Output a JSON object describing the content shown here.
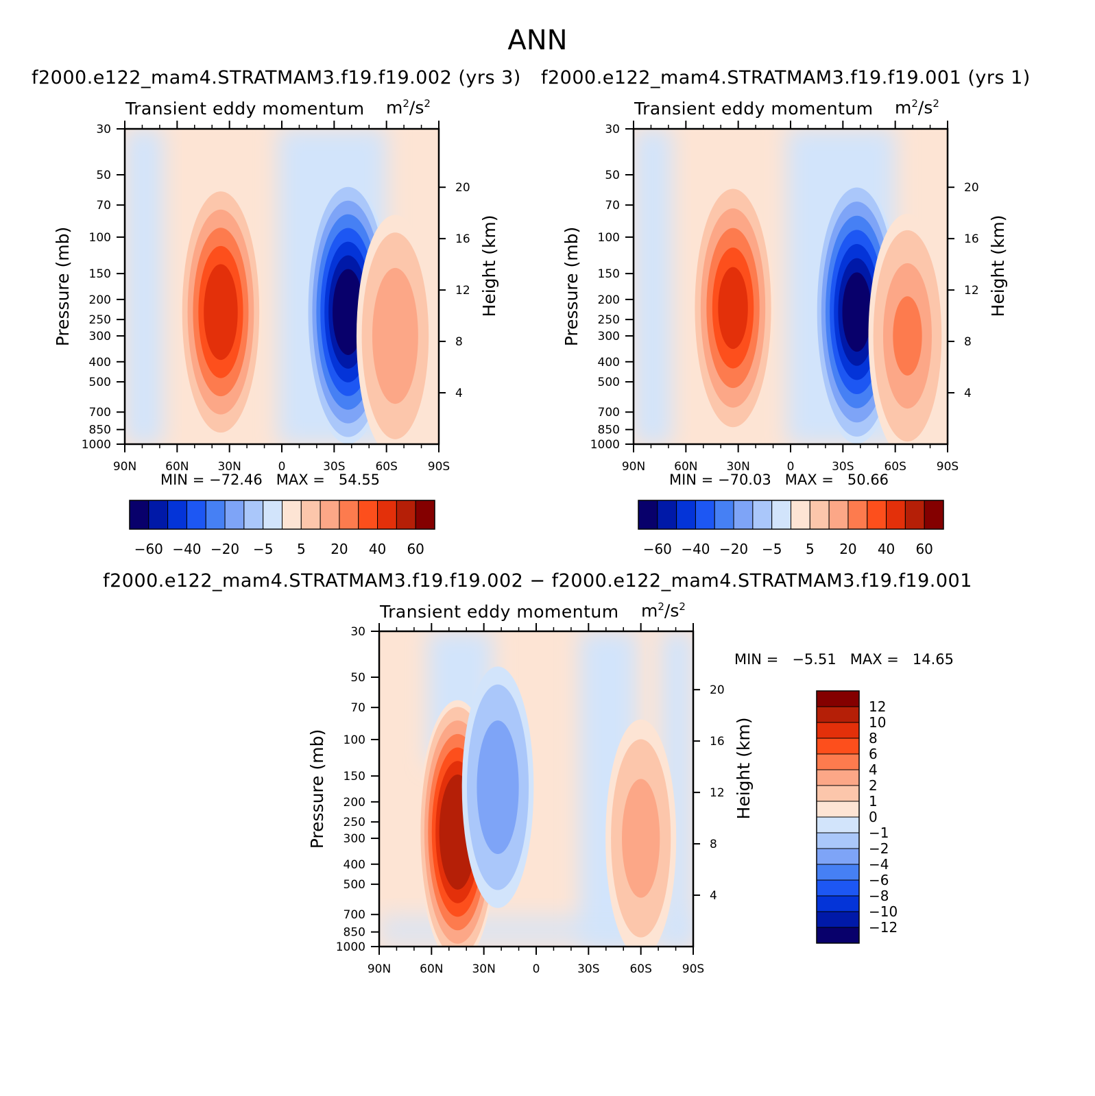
{
  "main_title": "ANN",
  "unit_base": "m",
  "unit_exp": "2",
  "unit_mid": "/s",
  "unit_exp2": "2",
  "chart_data": [
    {
      "type": "heatmap",
      "case_title": "f2000.e122_mam4.STRATMAM3.f19.f19.002 (yrs 3)",
      "panel_label": "Transient eddy momentum",
      "ylabel": "Pressure (mb)",
      "y2label": "Height (km)",
      "x_ticks": [
        "90N",
        "60N",
        "30N",
        "0",
        "30S",
        "60S",
        "90S"
      ],
      "y_ticks": [
        "30",
        "50",
        "70",
        "100",
        "150",
        "200",
        "250",
        "300",
        "400",
        "500",
        "700",
        "850",
        "1000"
      ],
      "y2_ticks": [
        "20",
        "16",
        "12",
        "8",
        "4"
      ],
      "min_label": "MIN =",
      "min_value": "−72.46",
      "max_label": "MAX =",
      "max_value": "54.55",
      "colorbar_labels": [
        "−60",
        "−40",
        "−20",
        "−5",
        "5",
        "20",
        "40",
        "60"
      ],
      "features": [
        {
          "lat": 35,
          "p": 230,
          "value": 54.55
        },
        {
          "lat": -38,
          "p": 230,
          "value": -72.46
        },
        {
          "lat": -65,
          "p": 300,
          "value": 28
        }
      ]
    },
    {
      "type": "heatmap",
      "case_title": "f2000.e122_mam4.STRATMAM3.f19.f19.001 (yrs 1)",
      "panel_label": "Transient eddy momentum",
      "ylabel": "Pressure (mb)",
      "y2label": "Height (km)",
      "x_ticks": [
        "90N",
        "60N",
        "30N",
        "0",
        "30S",
        "60S",
        "90S"
      ],
      "y_ticks": [
        "30",
        "50",
        "70",
        "100",
        "150",
        "200",
        "250",
        "300",
        "400",
        "500",
        "700",
        "850",
        "1000"
      ],
      "y2_ticks": [
        "20",
        "16",
        "12",
        "8",
        "4"
      ],
      "min_label": "MIN =",
      "min_value": "−70.03",
      "max_label": "MAX =",
      "max_value": "50.66",
      "colorbar_labels": [
        "−60",
        "−40",
        "−20",
        "−5",
        "5",
        "20",
        "40",
        "60"
      ],
      "features": [
        {
          "lat": 33,
          "p": 220,
          "value": 50.66
        },
        {
          "lat": -38,
          "p": 230,
          "value": -70.03
        },
        {
          "lat": -67,
          "p": 300,
          "value": 30
        }
      ]
    },
    {
      "type": "heatmap",
      "case_title": "f2000.e122_mam4.STRATMAM3.f19.f19.002 − f2000.e122_mam4.STRATMAM3.f19.f19.001",
      "panel_label": "Transient eddy momentum",
      "ylabel": "Pressure (mb)",
      "y2label": "Height (km)",
      "x_ticks": [
        "90N",
        "60N",
        "30N",
        "0",
        "30S",
        "60S",
        "90S"
      ],
      "y_ticks": [
        "30",
        "50",
        "70",
        "100",
        "150",
        "200",
        "250",
        "300",
        "400",
        "500",
        "700",
        "850",
        "1000"
      ],
      "y2_ticks": [
        "20",
        "16",
        "12",
        "8",
        "4"
      ],
      "min_label": "MIN =",
      "min_value": "−5.51",
      "max_label": "MAX =",
      "max_value": "14.65",
      "colorbar_labels": [
        "12",
        "10",
        "8",
        "6",
        "4",
        "2",
        "1",
        "0",
        "−1",
        "−2",
        "−4",
        "−6",
        "−8",
        "−10",
        "−12"
      ],
      "features": [
        {
          "lat": 45,
          "p": 280,
          "value": 14.65
        },
        {
          "lat": 22,
          "p": 170,
          "value": -5.51
        },
        {
          "lat": -60,
          "p": 300,
          "value": 5
        }
      ]
    }
  ],
  "colors": {
    "diverging": [
      "#08006b",
      "#0019a8",
      "#0434d8",
      "#1d57f3",
      "#4680f4",
      "#7ea4f7",
      "#aac7fa",
      "#d2e4fb",
      "#fde4d4",
      "#fcc6ab",
      "#fca787",
      "#fd7b4e",
      "#fd4f1c",
      "#e3300a",
      "#b51f07",
      "#840000"
    ]
  }
}
